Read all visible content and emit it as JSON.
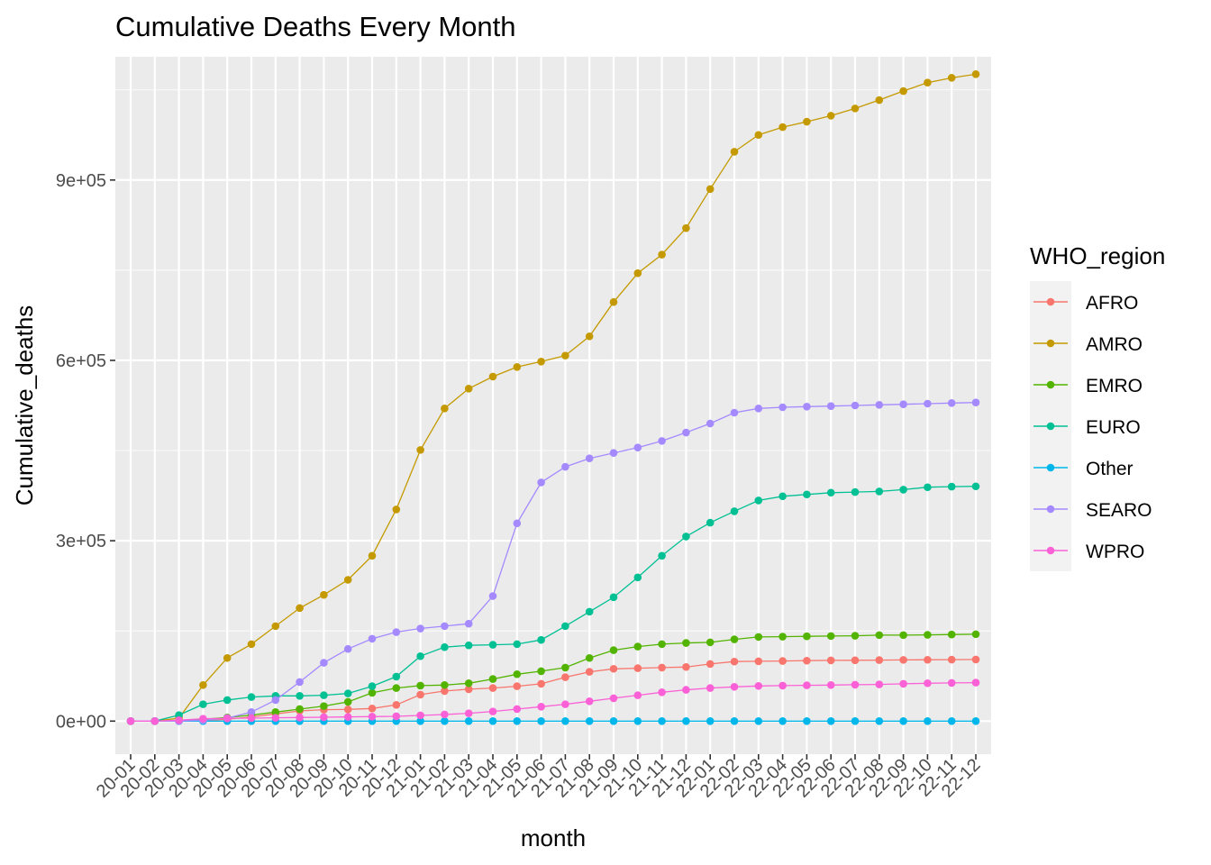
{
  "chart_data": {
    "type": "line",
    "title": "Cumulative Deaths Every Month",
    "xlabel": "month",
    "ylabel": "Cumulative_deaths",
    "ylim": [
      -55000,
      1105000
    ],
    "grid": true,
    "legend_title": "WHO_region",
    "legend_position": "right",
    "y_ticks": [
      {
        "value": 0,
        "label": "0e+00"
      },
      {
        "value": 300000,
        "label": "3e+05"
      },
      {
        "value": 600000,
        "label": "6e+05"
      },
      {
        "value": 900000,
        "label": "9e+05"
      }
    ],
    "categories": [
      "20-01",
      "20-02",
      "20-03",
      "20-04",
      "20-05",
      "20-06",
      "20-07",
      "20-08",
      "20-09",
      "20-10",
      "20-11",
      "20-12",
      "21-01",
      "21-02",
      "21-03",
      "21-04",
      "21-05",
      "21-06",
      "21-07",
      "21-08",
      "21-09",
      "21-10",
      "21-11",
      "21-12",
      "22-01",
      "22-02",
      "22-03",
      "22-04",
      "22-05",
      "22-06",
      "22-07",
      "22-08",
      "22-09",
      "22-10",
      "22-11",
      "22-12"
    ],
    "series": [
      {
        "name": "AFRO",
        "color": "#F8766D",
        "values": [
          0,
          0,
          100,
          1000,
          3000,
          7000,
          12000,
          17000,
          19000,
          19500,
          21000,
          27000,
          44000,
          50000,
          53000,
          55000,
          58000,
          62000,
          73000,
          82000,
          87000,
          88000,
          89000,
          90000,
          95000,
          99000,
          99500,
          100000,
          100500,
          101000,
          101200,
          101500,
          101800,
          102000,
          102200,
          102500
        ]
      },
      {
        "name": "AMRO",
        "color": "#C49A00",
        "values": [
          0,
          0,
          5000,
          60000,
          105000,
          128000,
          158000,
          188000,
          210000,
          235000,
          275000,
          352000,
          451000,
          520000,
          553000,
          573000,
          589000,
          598000,
          608000,
          640000,
          697000,
          745000,
          776000,
          820000,
          885000,
          947000,
          975000,
          988000,
          997000,
          1007000,
          1019000,
          1033000,
          1048000,
          1062000,
          1070000,
          1076000
        ]
      },
      {
        "name": "EMRO",
        "color": "#53B400",
        "values": [
          0,
          0,
          500,
          3000,
          6000,
          10000,
          15000,
          20000,
          25000,
          32000,
          47000,
          55000,
          59000,
          60000,
          63000,
          70000,
          78000,
          83000,
          89000,
          105000,
          118000,
          124000,
          128000,
          130000,
          131000,
          136000,
          140000,
          140500,
          141000,
          141500,
          142000,
          143000,
          143000,
          143500,
          144000,
          144500
        ]
      },
      {
        "name": "EURO",
        "color": "#00C094",
        "values": [
          0,
          0,
          10000,
          28000,
          35000,
          40000,
          42000,
          42000,
          43000,
          46000,
          58000,
          74000,
          108000,
          123000,
          126000,
          127000,
          128000,
          135000,
          158000,
          182000,
          206000,
          239000,
          275000,
          307000,
          330000,
          349000,
          367000,
          374000,
          377000,
          380000,
          381000,
          382000,
          385000,
          389000,
          390000,
          390500
        ]
      },
      {
        "name": "Other",
        "color": "#00B6EB",
        "values": [
          0,
          0,
          0,
          0,
          0,
          0,
          0,
          0,
          0,
          0,
          0,
          0,
          0,
          0,
          0,
          0,
          0,
          0,
          0,
          0,
          0,
          0,
          0,
          0,
          0,
          0,
          0,
          0,
          0,
          0,
          0,
          0,
          0,
          0,
          0,
          0
        ]
      },
      {
        "name": "SEARO",
        "color": "#A58AFF",
        "values": [
          0,
          0,
          200,
          1500,
          5000,
          15000,
          35000,
          65000,
          97000,
          120000,
          137000,
          148000,
          154000,
          158000,
          162000,
          208000,
          329000,
          397000,
          423000,
          437000,
          446000,
          455000,
          466000,
          480000,
          495000,
          513000,
          520000,
          522000,
          523000,
          524000,
          525000,
          526000,
          527000,
          528000,
          529000,
          530000
        ]
      },
      {
        "name": "WPRO",
        "color": "#FB61D7",
        "values": [
          0,
          0,
          1500,
          4000,
          4500,
          5000,
          5500,
          6000,
          6500,
          7000,
          7500,
          8000,
          9500,
          11000,
          13000,
          16000,
          20000,
          24000,
          28000,
          33000,
          38000,
          43000,
          48000,
          52000,
          55000,
          57000,
          58500,
          59000,
          59500,
          60000,
          60500,
          61000,
          62000,
          63000,
          63500,
          64000
        ]
      }
    ]
  }
}
